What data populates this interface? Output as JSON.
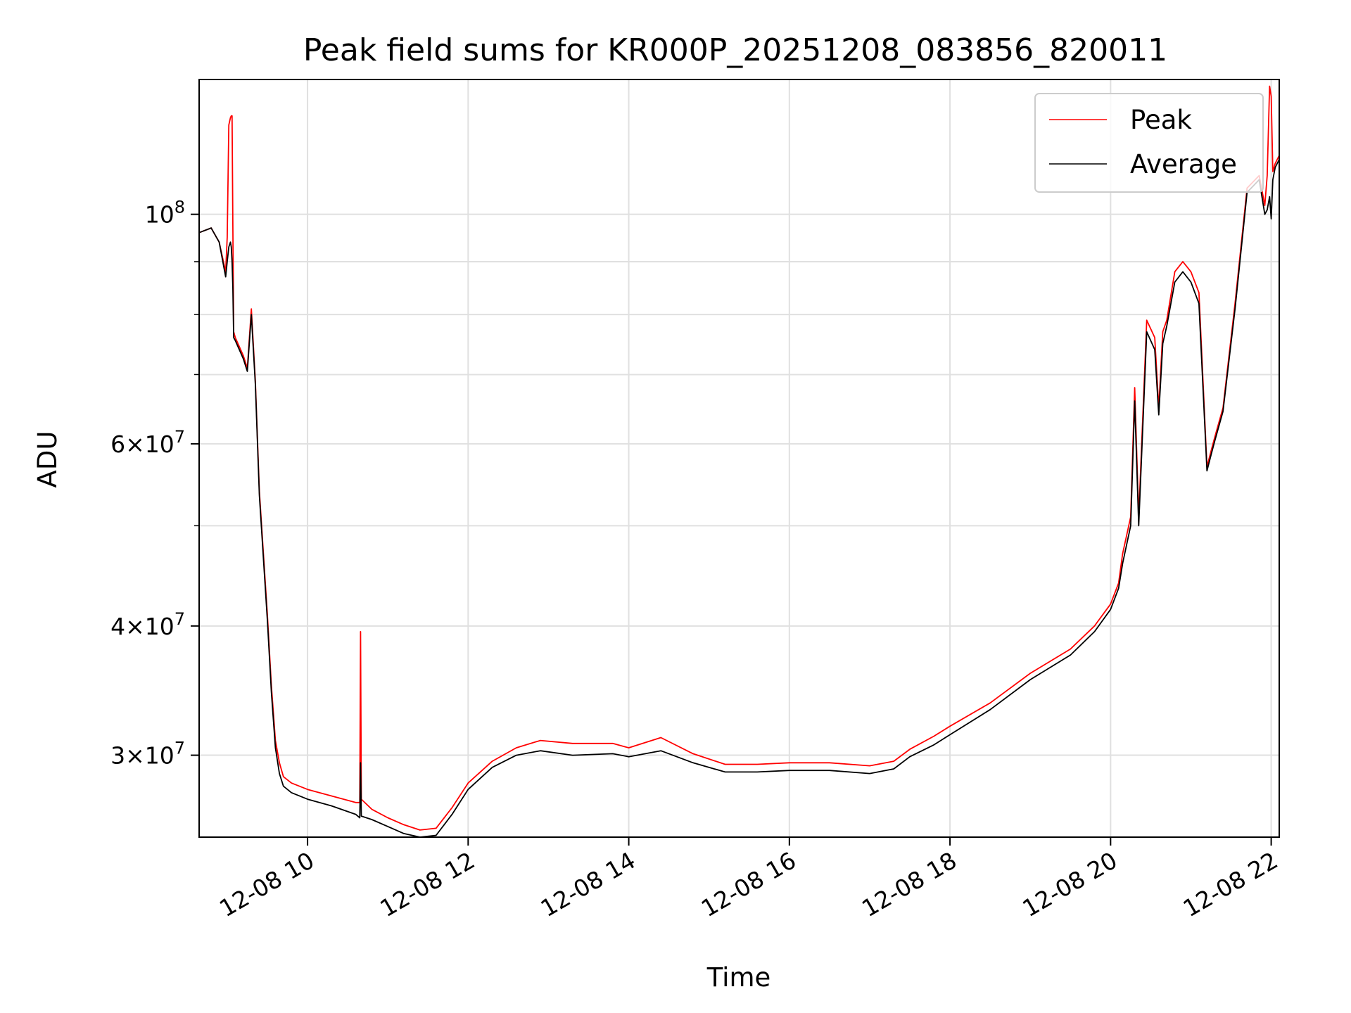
{
  "chart_data": {
    "type": "line",
    "title": "Peak field sums for KR000P_20251208_083856_820011",
    "xlabel": "Time",
    "ylabel": "ADU",
    "yscale": "log",
    "xlim": [
      8.65,
      22.1
    ],
    "ylim": [
      25000000,
      135000000
    ],
    "grid": true,
    "legend_position": "top-right",
    "x_ticks": [
      {
        "value": 10,
        "label": "12-08 10"
      },
      {
        "value": 12,
        "label": "12-08 12"
      },
      {
        "value": 14,
        "label": "12-08 14"
      },
      {
        "value": 16,
        "label": "12-08 16"
      },
      {
        "value": 18,
        "label": "12-08 18"
      },
      {
        "value": 20,
        "label": "12-08 20"
      },
      {
        "value": 22,
        "label": "12-08 22"
      }
    ],
    "y_major_ticks": [
      {
        "value": 100000000,
        "base": "10",
        "exp": "8",
        "mant": ""
      },
      {
        "value": 60000000,
        "base": "10",
        "exp": "7",
        "mant": "6"
      },
      {
        "value": 40000000,
        "base": "10",
        "exp": "7",
        "mant": "4"
      },
      {
        "value": 30000000,
        "base": "10",
        "exp": "7",
        "mant": "3"
      }
    ],
    "y_minor_ticks": [
      50000000,
      70000000,
      80000000,
      90000000
    ],
    "series": [
      {
        "name": "Peak",
        "color": "#ff0000",
        "x": [
          8.65,
          8.8,
          8.9,
          8.98,
          9.0,
          9.02,
          9.04,
          9.05,
          9.06,
          9.07,
          9.08,
          9.1,
          9.2,
          9.25,
          9.3,
          9.35,
          9.4,
          9.5,
          9.55,
          9.6,
          9.65,
          9.7,
          9.8,
          10.0,
          10.3,
          10.6,
          10.65,
          10.66,
          10.67,
          10.8,
          11.0,
          11.2,
          11.4,
          11.6,
          11.8,
          12.0,
          12.3,
          12.6,
          12.9,
          13.3,
          13.8,
          14.0,
          14.4,
          14.8,
          15.2,
          15.6,
          16.0,
          16.5,
          17.0,
          17.3,
          17.5,
          17.8,
          18.0,
          18.5,
          19.0,
          19.5,
          19.8,
          20.0,
          20.1,
          20.15,
          20.25,
          20.3,
          20.35,
          20.45,
          20.55,
          20.6,
          20.65,
          20.7,
          20.8,
          20.9,
          21.0,
          21.1,
          21.2,
          21.25,
          21.3,
          21.4,
          21.55,
          21.7,
          21.85,
          21.92,
          21.95,
          21.98,
          22.0,
          22.02,
          22.05,
          22.1
        ],
        "y": [
          96000000,
          97000000,
          94000000,
          88000000,
          95000000,
          122000000,
          124000000,
          124500000,
          124500000,
          98000000,
          77000000,
          76000000,
          73000000,
          71000000,
          81000000,
          69000000,
          54000000,
          41000000,
          35000000,
          31000000,
          29500000,
          28600000,
          28200000,
          27800000,
          27400000,
          27000000,
          27000000,
          39500000,
          27200000,
          26600000,
          26100000,
          25700000,
          25400000,
          25500000,
          26700000,
          28200000,
          29600000,
          30500000,
          31000000,
          30800000,
          30800000,
          30500000,
          31200000,
          30100000,
          29400000,
          29400000,
          29500000,
          29500000,
          29300000,
          29600000,
          30400000,
          31300000,
          32000000,
          33700000,
          36000000,
          38000000,
          40000000,
          42000000,
          44000000,
          47000000,
          51000000,
          68000000,
          51000000,
          79000000,
          76000000,
          65000000,
          77000000,
          79000000,
          88000000,
          90000000,
          88000000,
          84000000,
          57000000,
          59000000,
          61000000,
          65000000,
          82000000,
          106000000,
          109000000,
          102000000,
          109000000,
          133000000,
          130000000,
          110000000,
          112000000,
          114000000
        ]
      },
      {
        "name": "Average",
        "color": "#000000",
        "x": [
          8.65,
          8.8,
          8.9,
          8.98,
          9.0,
          9.02,
          9.04,
          9.05,
          9.06,
          9.07,
          9.08,
          9.1,
          9.2,
          9.25,
          9.3,
          9.35,
          9.4,
          9.5,
          9.55,
          9.6,
          9.65,
          9.7,
          9.8,
          10.0,
          10.3,
          10.6,
          10.65,
          10.66,
          10.67,
          10.8,
          11.0,
          11.2,
          11.4,
          11.6,
          11.8,
          12.0,
          12.3,
          12.6,
          12.9,
          13.3,
          13.8,
          14.0,
          14.4,
          14.8,
          15.2,
          15.6,
          16.0,
          16.5,
          17.0,
          17.3,
          17.5,
          17.8,
          18.0,
          18.5,
          19.0,
          19.5,
          19.8,
          20.0,
          20.1,
          20.15,
          20.25,
          20.3,
          20.35,
          20.45,
          20.55,
          20.6,
          20.65,
          20.7,
          20.8,
          20.9,
          21.0,
          21.1,
          21.2,
          21.25,
          21.3,
          21.4,
          21.55,
          21.7,
          21.85,
          21.92,
          21.95,
          21.98,
          22.0,
          22.02,
          22.05,
          22.1
        ],
        "y": [
          96000000,
          97000000,
          94000000,
          87000000,
          90000000,
          93000000,
          94000000,
          93000000,
          90000000,
          85000000,
          76000000,
          75500000,
          72500000,
          70500000,
          80000000,
          68500000,
          53500000,
          40500000,
          34500000,
          30500000,
          28800000,
          28000000,
          27600000,
          27200000,
          26800000,
          26300000,
          26100000,
          29500000,
          26200000,
          26000000,
          25600000,
          25200000,
          25000000,
          25100000,
          26300000,
          27800000,
          29200000,
          30000000,
          30300000,
          30000000,
          30100000,
          29900000,
          30300000,
          29500000,
          28900000,
          28900000,
          29000000,
          29000000,
          28800000,
          29100000,
          29900000,
          30700000,
          31400000,
          33200000,
          35500000,
          37500000,
          39500000,
          41500000,
          43500000,
          46000000,
          50000000,
          66000000,
          50000000,
          77000000,
          74000000,
          64000000,
          75000000,
          78000000,
          86000000,
          88000000,
          86000000,
          82000000,
          56500000,
          58500000,
          60500000,
          64500000,
          81000000,
          105000000,
          108000000,
          100000000,
          101000000,
          104000000,
          99000000,
          108000000,
          111000000,
          113000000
        ]
      }
    ]
  }
}
